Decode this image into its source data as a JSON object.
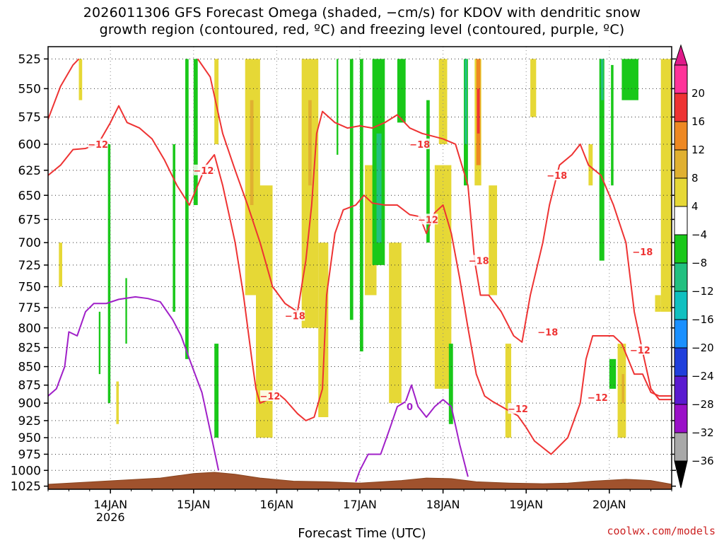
{
  "title_line1": "2026011306 GFS Forecast Omega (shaded, −cm/s) for KDOV with dendritic snow",
  "title_line2": "growth region (contoured, red, ºC) and freezing level (contoured, purple, ºC)",
  "credit": "coolwx.com/models",
  "chart_data": {
    "type": "heatmap",
    "xlabel": "Forecast Time (UTC)",
    "ylabel": "",
    "x_range_days": [
      13.25,
      20.75
    ],
    "x_ticks": [
      {
        "value": 14,
        "label": "14JAN",
        "sublabel": "2026"
      },
      {
        "value": 15,
        "label": "15JAN",
        "sublabel": ""
      },
      {
        "value": 16,
        "label": "16JAN",
        "sublabel": ""
      },
      {
        "value": 17,
        "label": "17JAN",
        "sublabel": ""
      },
      {
        "value": 18,
        "label": "18JAN",
        "sublabel": ""
      },
      {
        "value": 19,
        "label": "19JAN",
        "sublabel": ""
      },
      {
        "value": 20,
        "label": "20JAN",
        "sublabel": ""
      }
    ],
    "y_axis": "pressure (hPa), log scale, inverted",
    "y_ticks": [
      525,
      550,
      575,
      600,
      625,
      650,
      675,
      700,
      725,
      750,
      775,
      800,
      825,
      850,
      875,
      900,
      925,
      950,
      975,
      1000,
      1025
    ],
    "grid": true,
    "colorbar": {
      "levels": [
        {
          "label": "20",
          "color": "#ff3399"
        },
        {
          "label": "16",
          "color": "#ee3333"
        },
        {
          "label": "12",
          "color": "#ee8822"
        },
        {
          "label": "8",
          "color": "#e0b030"
        },
        {
          "label": "4",
          "color": "#e6d836"
        },
        {
          "label": "-4",
          "color": "#ffffff"
        },
        {
          "label": "-8",
          "color": "#19c819"
        },
        {
          "label": "-12",
          "color": "#22c080"
        },
        {
          "label": "-16",
          "color": "#10c0c0"
        },
        {
          "label": "-20",
          "color": "#1a90ff"
        },
        {
          "label": "-24",
          "color": "#1f3fdc"
        },
        {
          "label": "-28",
          "color": "#5a1ad0"
        },
        {
          "label": "-32",
          "color": "#9a10c8"
        },
        {
          "label": "-36",
          "color": "#a8a8a8"
        }
      ],
      "top_color": "#e01a8a",
      "bottom_color": "#000000"
    },
    "omega_regions": [
      {
        "value": 6,
        "x0": 13.38,
        "x1": 13.42,
        "p0": 700,
        "p1": 750
      },
      {
        "value": 6,
        "x0": 13.62,
        "x1": 13.66,
        "p0": 525,
        "p1": 560
      },
      {
        "value": -9,
        "x0": 13.97,
        "x1": 14.0,
        "p0": 600,
        "p1": 900
      },
      {
        "value": -9,
        "x0": 13.86,
        "x1": 13.88,
        "p0": 780,
        "p1": 860
      },
      {
        "value": -9,
        "x0": 14.18,
        "x1": 14.2,
        "p0": 740,
        "p1": 820
      },
      {
        "value": 6,
        "x0": 14.07,
        "x1": 14.1,
        "p0": 870,
        "p1": 930
      },
      {
        "value": -9,
        "x0": 14.9,
        "x1": 14.94,
        "p0": 525,
        "p1": 840
      },
      {
        "value": -9,
        "x0": 14.75,
        "x1": 14.78,
        "p0": 600,
        "p1": 780
      },
      {
        "value": -9,
        "x0": 15.0,
        "x1": 15.05,
        "p0": 525,
        "p1": 660
      },
      {
        "value": -9,
        "x0": 15.25,
        "x1": 15.3,
        "p0": 820,
        "p1": 950
      },
      {
        "value": 6,
        "x0": 15.25,
        "x1": 15.3,
        "p0": 525,
        "p1": 600
      },
      {
        "value": 6,
        "x0": 15.62,
        "x1": 15.8,
        "p0": 525,
        "p1": 760
      },
      {
        "value": 9,
        "x0": 15.68,
        "x1": 15.72,
        "p0": 560,
        "p1": 660
      },
      {
        "value": 6,
        "x0": 15.75,
        "x1": 15.95,
        "p0": 640,
        "p1": 950
      },
      {
        "value": 6,
        "x0": 16.3,
        "x1": 16.5,
        "p0": 525,
        "p1": 800
      },
      {
        "value": 9,
        "x0": 16.38,
        "x1": 16.42,
        "p0": 560,
        "p1": 640
      },
      {
        "value": 6,
        "x0": 16.5,
        "x1": 16.62,
        "p0": 700,
        "p1": 920
      },
      {
        "value": -9,
        "x0": 16.72,
        "x1": 16.74,
        "p0": 525,
        "p1": 610
      },
      {
        "value": -9,
        "x0": 16.88,
        "x1": 16.92,
        "p0": 525,
        "p1": 790
      },
      {
        "value": -9,
        "x0": 17.0,
        "x1": 17.04,
        "p0": 525,
        "p1": 830
      },
      {
        "value": 6,
        "x0": 17.06,
        "x1": 17.2,
        "p0": 620,
        "p1": 760
      },
      {
        "value": -9,
        "x0": 17.15,
        "x1": 17.3,
        "p0": 525,
        "p1": 725
      },
      {
        "value": -14,
        "x0": 17.2,
        "x1": 17.26,
        "p0": 590,
        "p1": 700
      },
      {
        "value": 6,
        "x0": 17.35,
        "x1": 17.5,
        "p0": 700,
        "p1": 900
      },
      {
        "value": -9,
        "x0": 17.45,
        "x1": 17.55,
        "p0": 525,
        "p1": 580
      },
      {
        "value": -9,
        "x0": 17.8,
        "x1": 17.84,
        "p0": 560,
        "p1": 700
      },
      {
        "value": 6,
        "x0": 17.9,
        "x1": 18.1,
        "p0": 620,
        "p1": 880
      },
      {
        "value": 6,
        "x0": 17.95,
        "x1": 18.05,
        "p0": 525,
        "p1": 600
      },
      {
        "value": -9,
        "x0": 18.07,
        "x1": 18.12,
        "p0": 820,
        "p1": 930
      },
      {
        "value": -9,
        "x0": 18.25,
        "x1": 18.3,
        "p0": 525,
        "p1": 640
      },
      {
        "value": -14,
        "x0": 18.26,
        "x1": 18.29,
        "p0": 525,
        "p1": 600
      },
      {
        "value": 6,
        "x0": 18.38,
        "x1": 18.46,
        "p0": 525,
        "p1": 640
      },
      {
        "value": 12,
        "x0": 18.4,
        "x1": 18.45,
        "p0": 525,
        "p1": 620
      },
      {
        "value": 16,
        "x0": 18.41,
        "x1": 18.44,
        "p0": 550,
        "p1": 590
      },
      {
        "value": 6,
        "x0": 18.55,
        "x1": 18.65,
        "p0": 640,
        "p1": 760
      },
      {
        "value": 6,
        "x0": 18.75,
        "x1": 18.82,
        "p0": 820,
        "p1": 950
      },
      {
        "value": 6,
        "x0": 19.05,
        "x1": 19.12,
        "p0": 525,
        "p1": 575
      },
      {
        "value": 6,
        "x0": 19.75,
        "x1": 19.8,
        "p0": 600,
        "p1": 640
      },
      {
        "value": -9,
        "x0": 19.88,
        "x1": 19.94,
        "p0": 525,
        "p1": 720
      },
      {
        "value": -14,
        "x0": 19.9,
        "x1": 19.93,
        "p0": 525,
        "p1": 560
      },
      {
        "value": -9,
        "x0": 20.02,
        "x1": 20.05,
        "p0": 530,
        "p1": 640
      },
      {
        "value": -9,
        "x0": 20.15,
        "x1": 20.35,
        "p0": 525,
        "p1": 560
      },
      {
        "value": -9,
        "x0": 20.0,
        "x1": 20.08,
        "p0": 840,
        "p1": 880
      },
      {
        "value": 6,
        "x0": 20.1,
        "x1": 20.2,
        "p0": 820,
        "p1": 950
      },
      {
        "value": 9,
        "x0": 20.15,
        "x1": 20.18,
        "p0": 860,
        "p1": 900
      },
      {
        "value": 6,
        "x0": 20.55,
        "x1": 20.62,
        "p0": 760,
        "p1": 780
      },
      {
        "value": 6,
        "x0": 20.62,
        "x1": 20.75,
        "p0": 525,
        "p1": 780
      }
    ],
    "contour_labels": [
      {
        "text": "-12",
        "color": "#ee3333",
        "x": 13.85,
        "p": 600
      },
      {
        "text": "-12",
        "color": "#ee3333",
        "x": 15.12,
        "p": 625
      },
      {
        "text": "-18",
        "color": "#ee3333",
        "x": 16.22,
        "p": 785
      },
      {
        "text": "-12",
        "color": "#ee3333",
        "x": 15.92,
        "p": 890
      },
      {
        "text": "-18",
        "color": "#ee3333",
        "x": 17.72,
        "p": 600
      },
      {
        "text": "-12",
        "color": "#ee3333",
        "x": 17.82,
        "p": 675
      },
      {
        "text": "-18",
        "color": "#ee3333",
        "x": 18.43,
        "p": 720
      },
      {
        "text": "-18",
        "color": "#ee3333",
        "x": 19.37,
        "p": 630
      },
      {
        "text": "-18",
        "color": "#ee3333",
        "x": 19.26,
        "p": 805
      },
      {
        "text": "-12",
        "color": "#ee3333",
        "x": 18.9,
        "p": 908
      },
      {
        "text": "-12",
        "color": "#ee3333",
        "x": 19.86,
        "p": 892
      },
      {
        "text": "-18",
        "color": "#ee3333",
        "x": 20.4,
        "p": 710
      },
      {
        "text": "-12",
        "color": "#ee3333",
        "x": 20.37,
        "p": 828
      },
      {
        "text": "0",
        "color": "#a020c8",
        "x": 17.6,
        "p": 905
      }
    ],
    "series": [
      {
        "name": "dgz_lower_-12",
        "color": "#ee3333",
        "points": [
          [
            13.25,
            630
          ],
          [
            13.4,
            620
          ],
          [
            13.55,
            605
          ],
          [
            13.7,
            604
          ],
          [
            13.85,
            600
          ],
          [
            14.0,
            580
          ],
          [
            14.1,
            565
          ],
          [
            14.2,
            580
          ],
          [
            14.35,
            585
          ],
          [
            14.5,
            595
          ],
          [
            14.65,
            615
          ],
          [
            14.8,
            640
          ],
          [
            14.95,
            660
          ],
          [
            15.05,
            640
          ],
          [
            15.15,
            620
          ],
          [
            15.25,
            610
          ],
          [
            15.35,
            640
          ],
          [
            15.5,
            700
          ],
          [
            15.6,
            760
          ],
          [
            15.7,
            840
          ],
          [
            15.75,
            880
          ],
          [
            15.8,
            900
          ],
          [
            15.9,
            895
          ],
          [
            16.0,
            885
          ],
          [
            16.1,
            895
          ],
          [
            16.25,
            915
          ],
          [
            16.35,
            925
          ],
          [
            16.45,
            920
          ],
          [
            16.55,
            880
          ],
          [
            16.6,
            760
          ],
          [
            16.7,
            690
          ],
          [
            16.8,
            665
          ],
          [
            16.95,
            660
          ],
          [
            17.05,
            650
          ],
          [
            17.15,
            658
          ],
          [
            17.3,
            660
          ],
          [
            17.45,
            660
          ],
          [
            17.6,
            670
          ],
          [
            17.72,
            672
          ],
          [
            17.8,
            690
          ],
          [
            17.9,
            668
          ],
          [
            18.0,
            660
          ],
          [
            18.1,
            690
          ],
          [
            18.2,
            740
          ],
          [
            18.3,
            800
          ],
          [
            18.4,
            860
          ],
          [
            18.5,
            890
          ],
          [
            18.6,
            898
          ],
          [
            18.75,
            908
          ],
          [
            18.9,
            918
          ],
          [
            19.0,
            935
          ],
          [
            19.1,
            955
          ],
          [
            19.3,
            975
          ],
          [
            19.5,
            950
          ],
          [
            19.65,
            900
          ],
          [
            19.72,
            840
          ],
          [
            19.8,
            810
          ],
          [
            19.95,
            810
          ],
          [
            20.05,
            810
          ],
          [
            20.15,
            820
          ],
          [
            20.3,
            860
          ],
          [
            20.4,
            860
          ],
          [
            20.5,
            885
          ],
          [
            20.6,
            890
          ],
          [
            20.75,
            890
          ]
        ]
      },
      {
        "name": "dgz_upper_-18",
        "color": "#ee3333",
        "points": [
          [
            13.25,
            577
          ],
          [
            13.4,
            548
          ],
          [
            13.55,
            530
          ],
          [
            13.62,
            525
          ],
          [
            15.05,
            525
          ],
          [
            15.2,
            540
          ],
          [
            15.35,
            590
          ],
          [
            15.5,
            625
          ],
          [
            15.65,
            660
          ],
          [
            15.8,
            700
          ],
          [
            15.95,
            750
          ],
          [
            16.1,
            770
          ],
          [
            16.25,
            780
          ],
          [
            16.35,
            720
          ],
          [
            16.42,
            660
          ],
          [
            16.48,
            590
          ],
          [
            16.55,
            570
          ],
          [
            16.7,
            580
          ],
          [
            16.85,
            585
          ],
          [
            17.0,
            583
          ],
          [
            17.15,
            585
          ],
          [
            17.3,
            580
          ],
          [
            17.45,
            573
          ],
          [
            17.6,
            585
          ],
          [
            17.75,
            590
          ],
          [
            17.85,
            592
          ],
          [
            18.0,
            595
          ],
          [
            18.15,
            600
          ],
          [
            18.3,
            640
          ],
          [
            18.38,
            720
          ],
          [
            18.45,
            760
          ],
          [
            18.55,
            760
          ],
          [
            18.7,
            780
          ],
          [
            18.85,
            810
          ],
          [
            18.95,
            818
          ],
          [
            19.05,
            760
          ],
          [
            19.2,
            700
          ],
          [
            19.28,
            660
          ],
          [
            19.4,
            620
          ],
          [
            19.55,
            610
          ],
          [
            19.65,
            600
          ],
          [
            19.75,
            620
          ],
          [
            19.9,
            630
          ],
          [
            20.05,
            660
          ],
          [
            20.2,
            700
          ],
          [
            20.3,
            780
          ],
          [
            20.4,
            830
          ],
          [
            20.5,
            880
          ],
          [
            20.6,
            895
          ],
          [
            20.75,
            895
          ]
        ]
      },
      {
        "name": "freezing_level_0",
        "color": "#a020c8",
        "points": [
          [
            13.25,
            890
          ],
          [
            13.35,
            880
          ],
          [
            13.45,
            850
          ],
          [
            13.5,
            805
          ],
          [
            13.6,
            810
          ],
          [
            13.7,
            780
          ],
          [
            13.8,
            770
          ],
          [
            13.95,
            770
          ],
          [
            14.1,
            765
          ],
          [
            14.3,
            762
          ],
          [
            14.45,
            764
          ],
          [
            14.6,
            768
          ],
          [
            14.75,
            790
          ],
          [
            14.85,
            810
          ],
          [
            14.95,
            840
          ],
          [
            15.05,
            870
          ],
          [
            15.1,
            885
          ],
          [
            15.2,
            940
          ],
          [
            15.3,
            1000
          ],
          [
            16.95,
            1018
          ],
          [
            17.0,
            1000
          ],
          [
            17.1,
            975
          ],
          [
            17.25,
            975
          ],
          [
            17.35,
            940
          ],
          [
            17.45,
            905
          ],
          [
            17.55,
            898
          ],
          [
            17.62,
            875
          ],
          [
            17.7,
            905
          ],
          [
            17.8,
            920
          ],
          [
            17.9,
            905
          ],
          [
            18.0,
            895
          ],
          [
            18.1,
            905
          ],
          [
            18.2,
            960
          ],
          [
            18.3,
            1010
          ]
        ]
      }
    ],
    "ground_profile": [
      [
        13.25,
        1022
      ],
      [
        13.8,
        1018
      ],
      [
        14.2,
        1015
      ],
      [
        14.6,
        1012
      ],
      [
        15.0,
        1005
      ],
      [
        15.25,
        1003
      ],
      [
        15.5,
        1006
      ],
      [
        15.8,
        1012
      ],
      [
        16.2,
        1017
      ],
      [
        16.6,
        1018
      ],
      [
        17.0,
        1020
      ],
      [
        17.5,
        1016
      ],
      [
        17.8,
        1012
      ],
      [
        18.1,
        1013
      ],
      [
        18.4,
        1018
      ],
      [
        18.8,
        1020
      ],
      [
        19.2,
        1021
      ],
      [
        19.5,
        1020
      ],
      [
        19.8,
        1017
      ],
      [
        20.2,
        1014
      ],
      [
        20.5,
        1016
      ],
      [
        20.75,
        1022
      ]
    ]
  }
}
